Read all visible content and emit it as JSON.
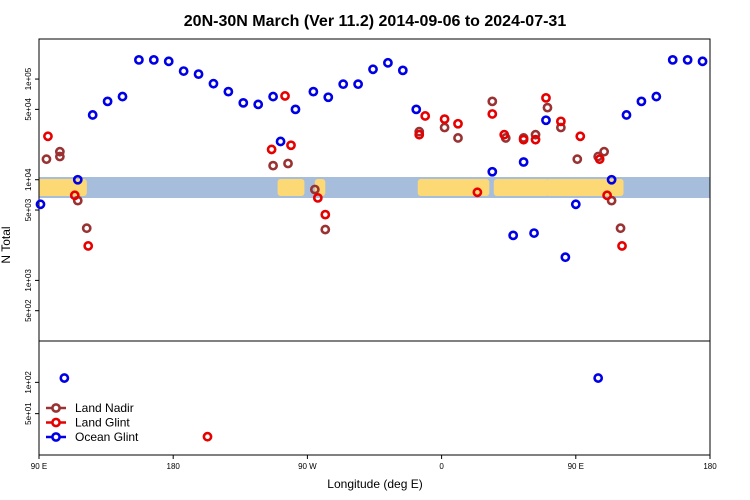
{
  "chart_data": {
    "type": "scatter",
    "title": "20N-30N March (Ver 11.2)   2014-09-06 to 2024-07-31",
    "xlabel": "Longitude (deg E)",
    "ylabel": "N Total",
    "x_ticks": [
      {
        "value": 90,
        "label": "90 E"
      },
      {
        "value": 180,
        "label": "180"
      },
      {
        "value": 270,
        "label": "90 W"
      },
      {
        "value": 360,
        "label": "0"
      },
      {
        "value": 450,
        "label": "90 E"
      },
      {
        "value": 540,
        "label": "180"
      }
    ],
    "xlim": [
      90,
      540
    ],
    "y_ticks_upper": [
      {
        "value": 100000,
        "label": "1e+05"
      },
      {
        "value": 50000,
        "label": "5e+04"
      },
      {
        "value": 10000,
        "label": "1e+04"
      },
      {
        "value": 5000,
        "label": "5e+03"
      },
      {
        "value": 1000,
        "label": "1e+03"
      },
      {
        "value": 500,
        "label": "5e+02"
      }
    ],
    "y_ticks_lower": [
      {
        "value": 100,
        "label": "1e+02"
      },
      {
        "value": 50,
        "label": "5e+01"
      }
    ],
    "ylim_upper": [
      250,
      250000
    ],
    "ylim_lower": [
      20,
      250
    ],
    "map_band": {
      "ocean_color": "#a6bddb",
      "land_color": "#fdd976"
    },
    "series": [
      {
        "name": "Land Nadir",
        "color": "#993333",
        "points": [
          [
            95,
            16000
          ],
          [
            104,
            17000
          ],
          [
            104,
            19000
          ],
          [
            116,
            6200
          ],
          [
            122,
            3300
          ],
          [
            247,
            13800
          ],
          [
            257,
            14500
          ],
          [
            275,
            8000
          ],
          [
            282,
            3200
          ],
          [
            345,
            30000
          ],
          [
            362,
            33000
          ],
          [
            371,
            26000
          ],
          [
            394,
            60000
          ],
          [
            403,
            26000
          ],
          [
            415,
            26000
          ],
          [
            423,
            28000
          ],
          [
            431,
            52000
          ],
          [
            440,
            33000
          ],
          [
            451,
            16000
          ],
          [
            465,
            17000
          ],
          [
            469,
            19000
          ],
          [
            474,
            6200
          ],
          [
            480,
            3300
          ]
        ]
      },
      {
        "name": "Land Glint",
        "color": "#e60000",
        "points": [
          [
            96,
            27000
          ],
          [
            114,
            7000
          ],
          [
            123,
            2200
          ],
          [
            203,
            30
          ],
          [
            246,
            20000
          ],
          [
            255,
            68000
          ],
          [
            259,
            22000
          ],
          [
            277,
            6600
          ],
          [
            282,
            4500
          ],
          [
            345,
            28000
          ],
          [
            349,
            43000
          ],
          [
            362,
            40000
          ],
          [
            371,
            36000
          ],
          [
            384,
            7500
          ],
          [
            394,
            45000
          ],
          [
            402,
            28000
          ],
          [
            415,
            25000
          ],
          [
            423,
            25000
          ],
          [
            430,
            65000
          ],
          [
            440,
            38000
          ],
          [
            453,
            27000
          ],
          [
            466,
            16000
          ],
          [
            471,
            7000
          ],
          [
            481,
            2200
          ]
        ]
      },
      {
        "name": "Ocean Glint",
        "color": "#0000e6",
        "points": [
          [
            91,
            5700
          ],
          [
            107,
            110
          ],
          [
            116,
            10000
          ],
          [
            126,
            44000
          ],
          [
            136,
            60000
          ],
          [
            146,
            67000
          ],
          [
            157,
            155000
          ],
          [
            167,
            155000
          ],
          [
            177,
            150000
          ],
          [
            187,
            120000
          ],
          [
            197,
            112000
          ],
          [
            207,
            90000
          ],
          [
            217,
            75000
          ],
          [
            227,
            58000
          ],
          [
            237,
            56000
          ],
          [
            247,
            67000
          ],
          [
            252,
            24000
          ],
          [
            262,
            50000
          ],
          [
            274,
            75000
          ],
          [
            284,
            66000
          ],
          [
            294,
            89000
          ],
          [
            304,
            89000
          ],
          [
            314,
            125000
          ],
          [
            324,
            145000
          ],
          [
            334,
            122000
          ],
          [
            343,
            50000
          ],
          [
            394,
            12000
          ],
          [
            408,
            2800
          ],
          [
            415,
            15000
          ],
          [
            422,
            2950
          ],
          [
            430,
            39000
          ],
          [
            443,
            1700
          ],
          [
            450,
            5700
          ],
          [
            465,
            110
          ],
          [
            474,
            10000
          ],
          [
            484,
            44000
          ],
          [
            494,
            60000
          ],
          [
            504,
            67000
          ],
          [
            515,
            155000
          ],
          [
            525,
            155000
          ],
          [
            535,
            150000
          ]
        ]
      }
    ],
    "legend": {
      "position": "bottom-left",
      "entries": [
        "Land Nadir",
        "Land Glint",
        "Ocean Glint"
      ]
    }
  }
}
